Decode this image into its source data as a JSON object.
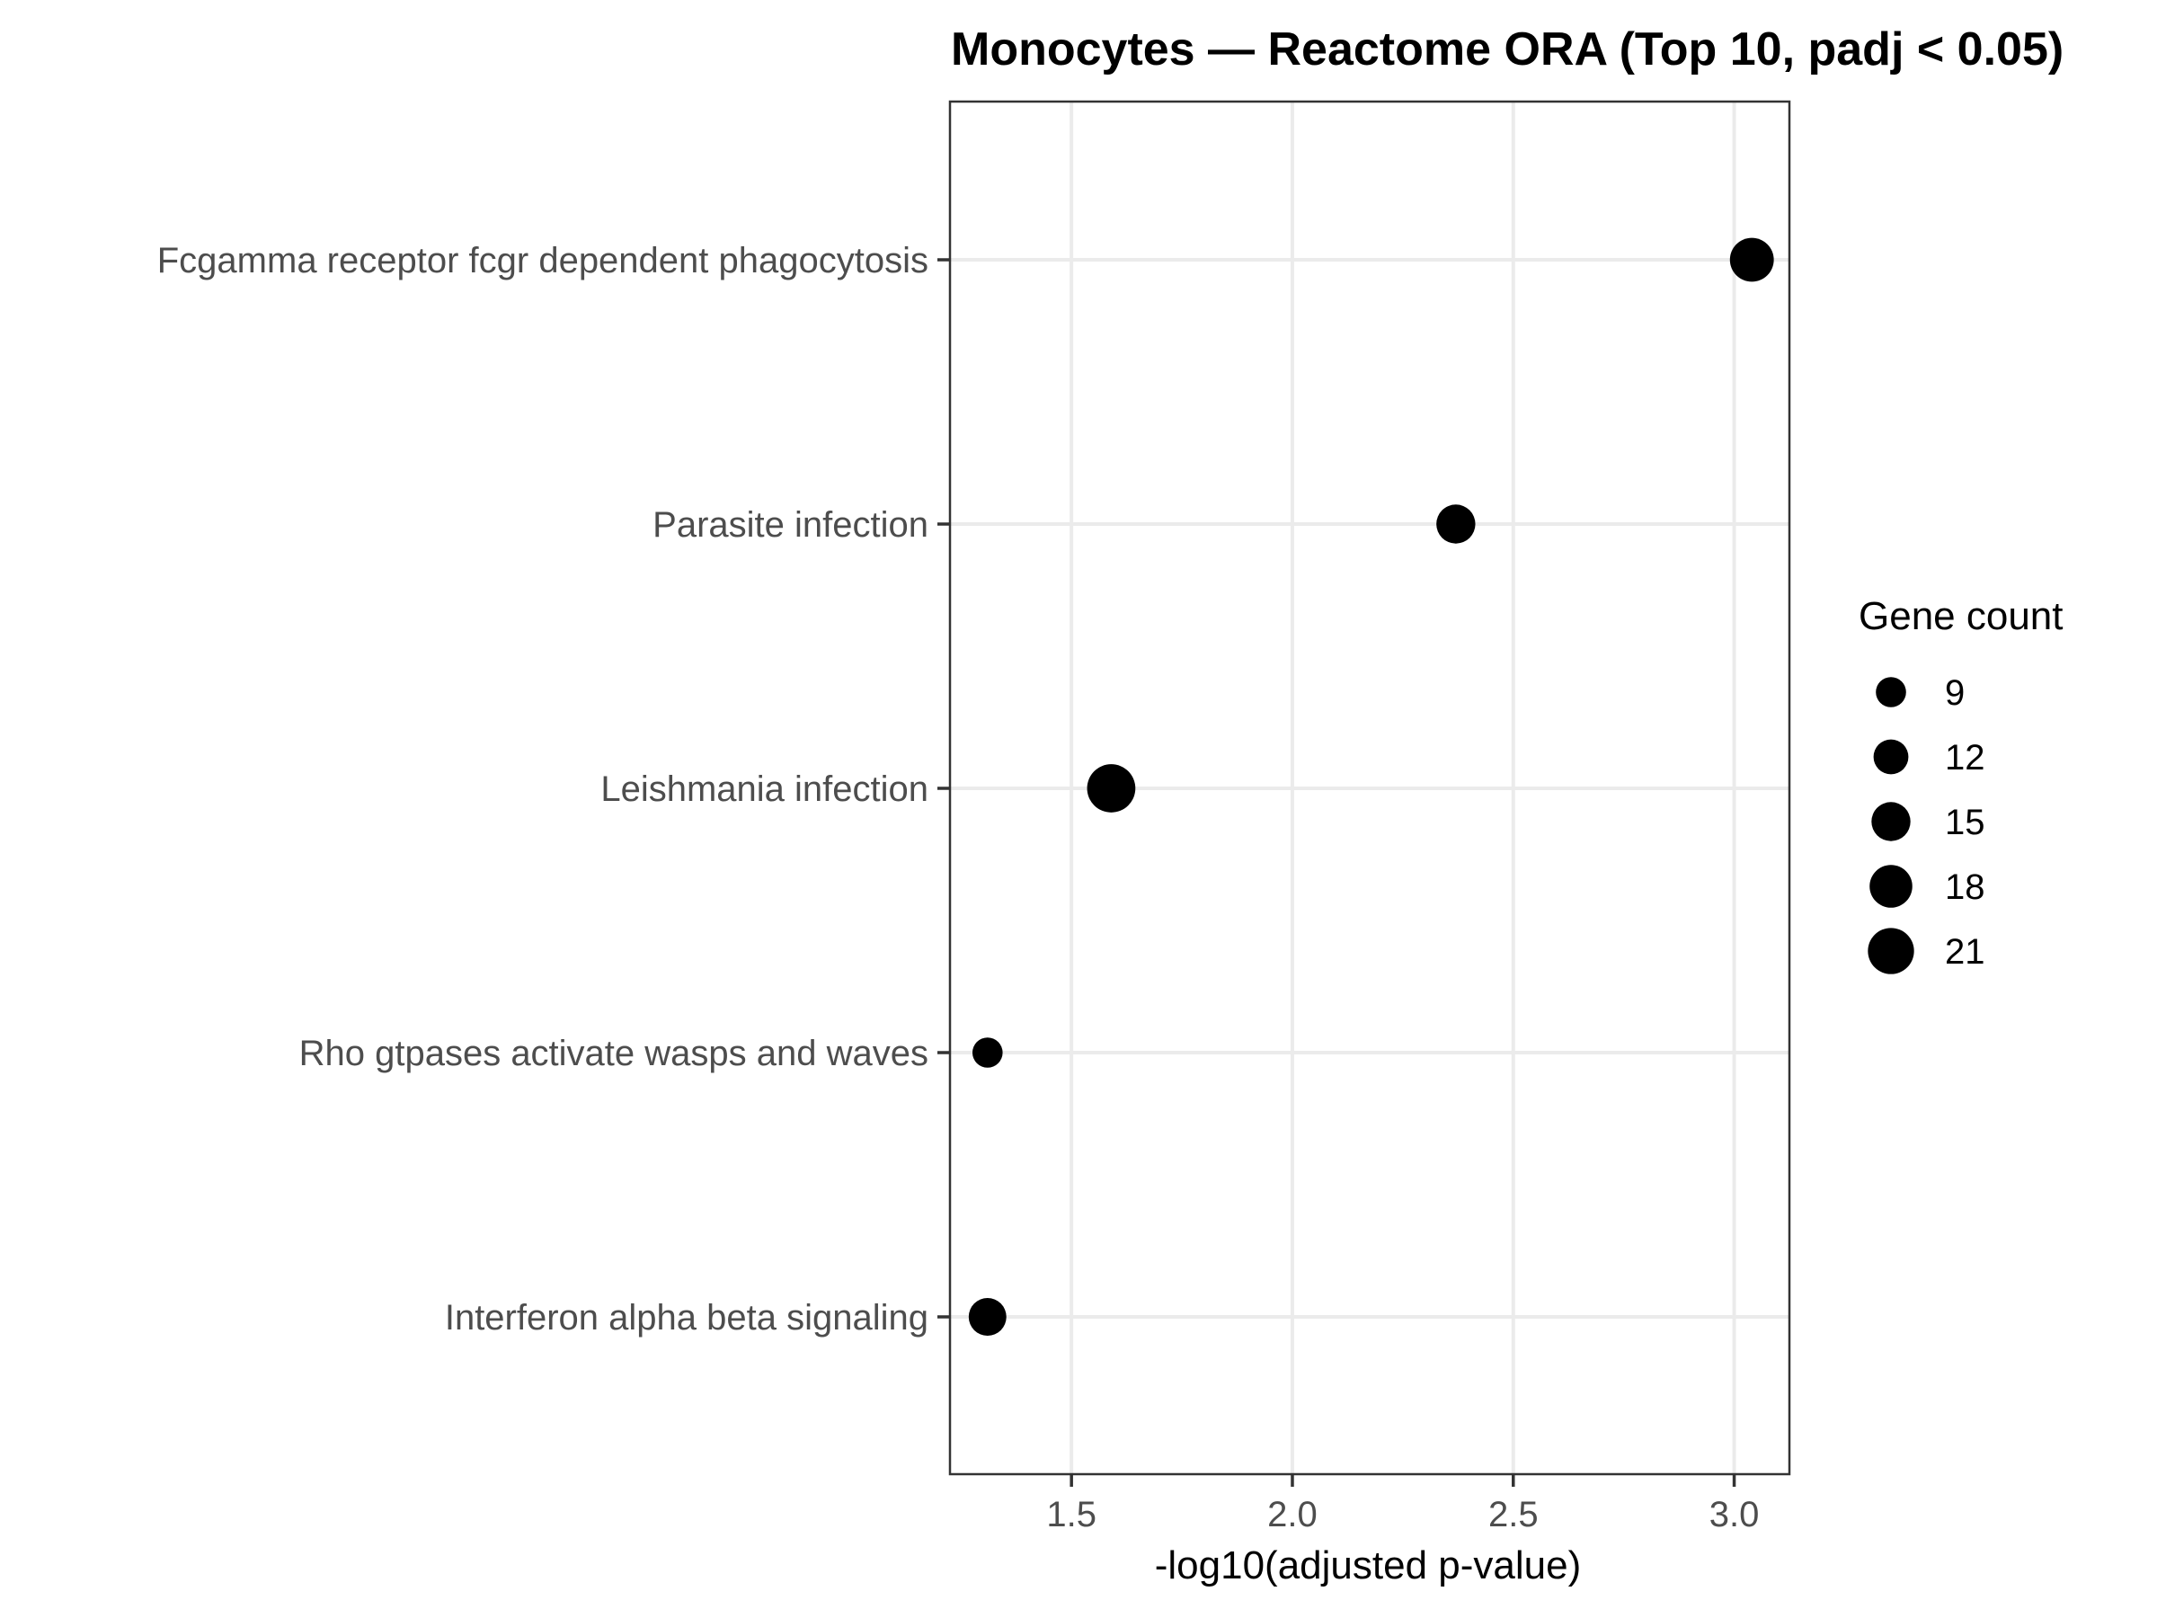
{
  "chart_data": {
    "type": "scatter",
    "title": "Monocytes — Reactome ORA (Top 10, padj < 0.05)",
    "xlabel": "-log10(adjusted p-value)",
    "ylabel": "",
    "xlim": [
      1.225,
      3.125
    ],
    "x_ticks": [
      "1.5",
      "2.0",
      "2.5",
      "3.0"
    ],
    "grid": true,
    "points": [
      {
        "label": "Fcgamma receptor fcgr dependent phagocytosis",
        "x": 3.04,
        "size": 19
      },
      {
        "label": "Parasite infection",
        "x": 2.37,
        "size": 15
      },
      {
        "label": "Leishmania infection",
        "x": 1.59,
        "size": 23
      },
      {
        "label": "Rho gtpases activate wasps and waves",
        "x": 1.31,
        "size": 9
      },
      {
        "label": "Interferon alpha beta signaling",
        "x": 1.31,
        "size": 14
      }
    ],
    "legend": {
      "title": "Gene count",
      "position": "right",
      "entries": [
        {
          "label": "9",
          "size": 9
        },
        {
          "label": "12",
          "size": 12
        },
        {
          "label": "15",
          "size": 15
        },
        {
          "label": "18",
          "size": 18
        },
        {
          "label": "21",
          "size": 21
        }
      ]
    },
    "point_color": "#000000"
  }
}
